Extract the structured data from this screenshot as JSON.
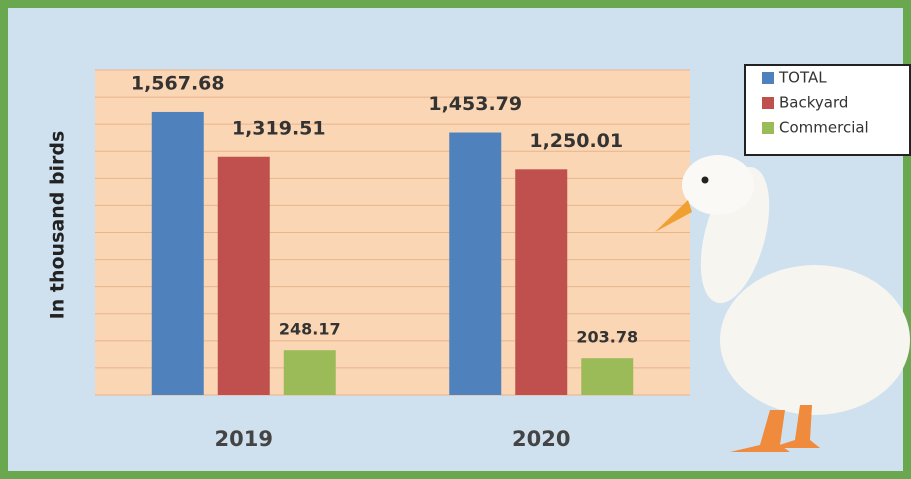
{
  "chart_data": {
    "type": "bar",
    "y_label": "In thousand birds",
    "categories": [
      "2019",
      "2020"
    ],
    "series": [
      {
        "name": "TOTAL",
        "color": "#4f81bd",
        "values": [
          1567.68,
          1453.79
        ],
        "value_labels": [
          "1,567.68",
          "1,453.79"
        ]
      },
      {
        "name": "Backyard",
        "color": "#c0504d",
        "values": [
          1319.51,
          1250.01
        ],
        "value_labels": [
          "1,319.51",
          "1,250.01"
        ]
      },
      {
        "name": "Commercial",
        "color": "#9bbb59",
        "values": [
          248.17,
          203.78
        ],
        "value_labels": [
          "248.17",
          "203.78"
        ]
      }
    ],
    "ylim": [
      0,
      1800
    ],
    "yticks": [
      0,
      150,
      300,
      450,
      600,
      750,
      900,
      1050,
      1200,
      1350,
      1500,
      1650,
      1800
    ],
    "grid": true,
    "legend": "top-right"
  }
}
